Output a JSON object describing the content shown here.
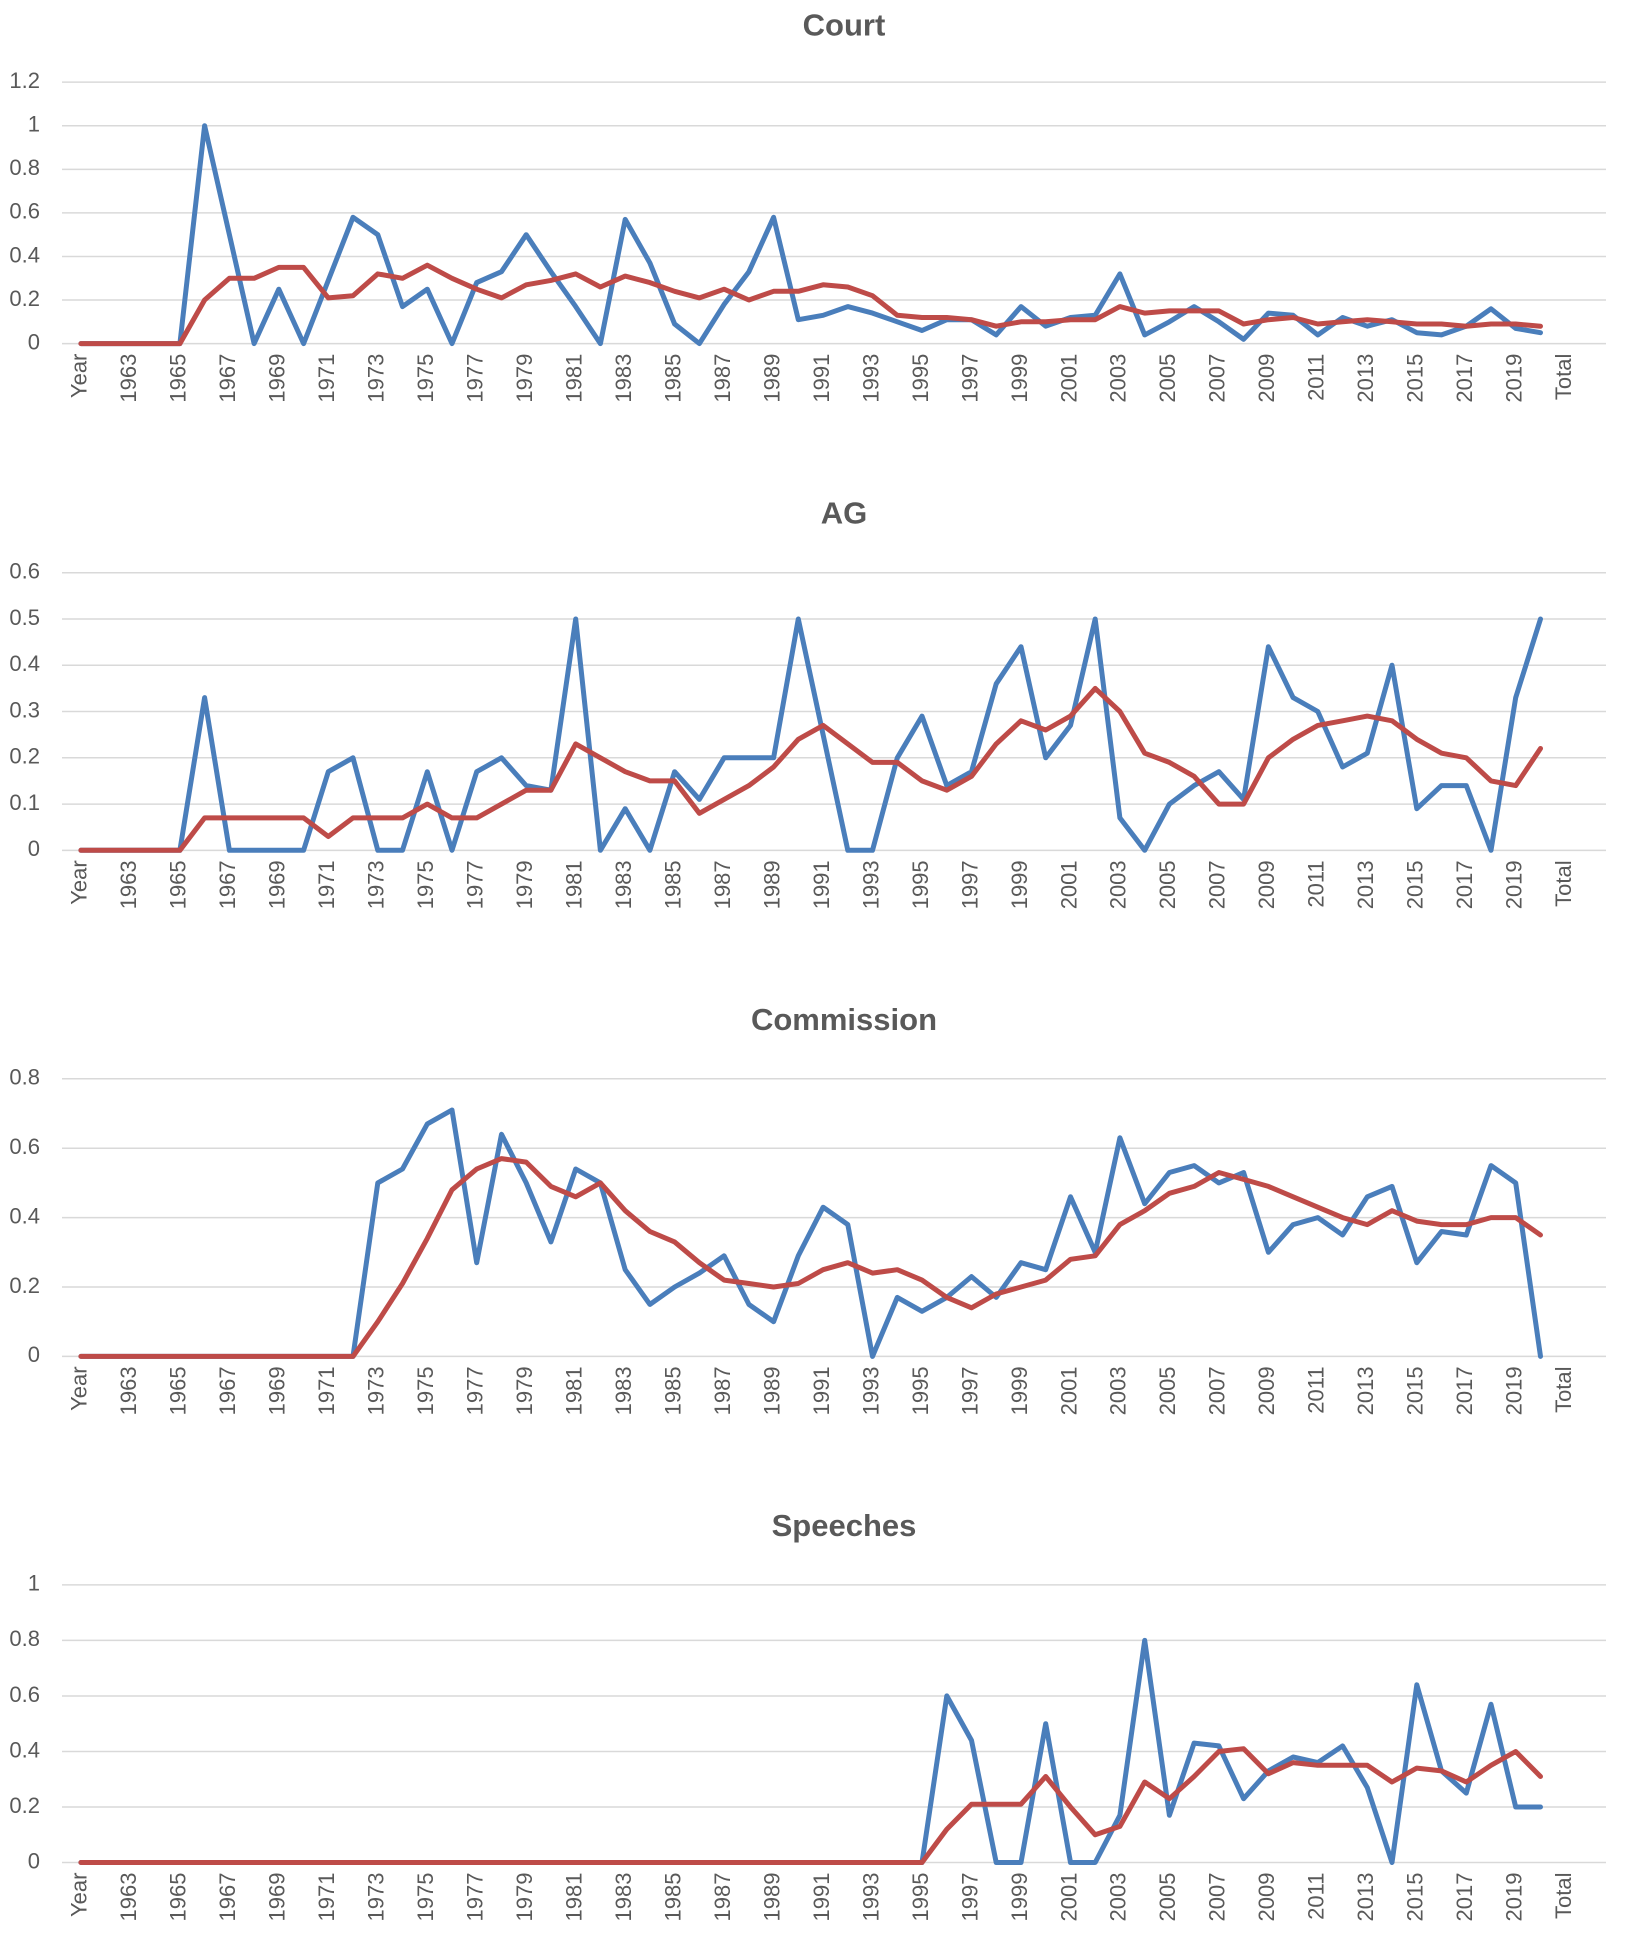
{
  "chart_data": [
    {
      "type": "line",
      "title": "Court",
      "categories": [
        "Year",
        null,
        "1963",
        null,
        "1965",
        null,
        "1967",
        null,
        "1969",
        null,
        "1971",
        null,
        "1973",
        null,
        "1975",
        null,
        "1977",
        null,
        "1979",
        null,
        "1981",
        null,
        "1983",
        null,
        "1985",
        null,
        "1987",
        null,
        "1989",
        null,
        "1991",
        null,
        "1993",
        null,
        "1995",
        null,
        "1997",
        null,
        "1999",
        null,
        "2001",
        null,
        "2003",
        null,
        "2005",
        null,
        "2007",
        null,
        "2009",
        null,
        "2011",
        null,
        "2013",
        null,
        "2015",
        null,
        "2017",
        null,
        "2019",
        null,
        "Total"
      ],
      "ylim": [
        0,
        1.2
      ],
      "yticks": [
        0,
        0.2,
        0.4,
        0.6,
        0.8,
        1,
        1.2
      ],
      "grid": true,
      "series": [
        {
          "color": "#4a7ebb",
          "values": [
            0,
            0,
            0,
            0,
            0,
            1,
            0.5,
            0,
            0.25,
            0,
            0.29,
            0.58,
            0.5,
            0.17,
            0.25,
            0,
            0.28,
            0.33,
            0.5,
            0.33,
            0.17,
            0,
            0.57,
            0.37,
            0.09,
            0,
            0.18,
            0.33,
            0.58,
            0.11,
            0.13,
            0.17,
            0.14,
            0.1,
            0.06,
            0.11,
            0.11,
            0.04,
            0.17,
            0.08,
            0.12,
            0.13,
            0.32,
            0.04,
            0.1,
            0.17,
            0.1,
            0.02,
            0.14,
            0.13,
            0.04,
            0.12,
            0.08,
            0.11,
            0.05,
            0.04,
            0.08,
            0.16,
            0.07,
            0.05,
            null
          ]
        },
        {
          "color": "#be4b48",
          "values": [
            0,
            0,
            0,
            0,
            0,
            0.2,
            0.3,
            0.3,
            0.35,
            0.35,
            0.21,
            0.22,
            0.32,
            0.3,
            0.36,
            0.3,
            0.25,
            0.21,
            0.27,
            0.29,
            0.32,
            0.26,
            0.31,
            0.28,
            0.24,
            0.21,
            0.25,
            0.2,
            0.24,
            0.24,
            0.27,
            0.26,
            0.22,
            0.13,
            0.12,
            0.12,
            0.11,
            0.08,
            0.1,
            0.1,
            0.11,
            0.11,
            0.17,
            0.14,
            0.15,
            0.15,
            0.15,
            0.09,
            0.11,
            0.12,
            0.09,
            0.1,
            0.11,
            0.1,
            0.09,
            0.09,
            0.08,
            0.09,
            0.09,
            0.08,
            null
          ]
        }
      ]
    },
    {
      "type": "line",
      "title": "AG",
      "categories": [
        "Year",
        null,
        "1963",
        null,
        "1965",
        null,
        "1967",
        null,
        "1969",
        null,
        "1971",
        null,
        "1973",
        null,
        "1975",
        null,
        "1977",
        null,
        "1979",
        null,
        "1981",
        null,
        "1983",
        null,
        "1985",
        null,
        "1987",
        null,
        "1989",
        null,
        "1991",
        null,
        "1993",
        null,
        "1995",
        null,
        "1997",
        null,
        "1999",
        null,
        "2001",
        null,
        "2003",
        null,
        "2005",
        null,
        "2007",
        null,
        "2009",
        null,
        "2011",
        null,
        "2013",
        null,
        "2015",
        null,
        "2017",
        null,
        "2019",
        null,
        "Total"
      ],
      "ylim": [
        0,
        0.6
      ],
      "yticks": [
        0,
        0.1,
        0.2,
        0.3,
        0.4,
        0.5,
        0.6
      ],
      "grid": true,
      "series": [
        {
          "color": "#4a7ebb",
          "values": [
            0,
            0,
            0,
            0,
            0,
            0.33,
            0,
            0,
            0,
            0,
            0.17,
            0.2,
            0,
            0,
            0.17,
            0,
            0.17,
            0.2,
            0.14,
            0.13,
            0.5,
            0,
            0.09,
            0,
            0.17,
            0.11,
            0.2,
            0.2,
            0.2,
            0.5,
            0.25,
            0,
            0,
            0.2,
            0.29,
            0.14,
            0.17,
            0.36,
            0.44,
            0.2,
            0.27,
            0.5,
            0.07,
            0,
            0.1,
            0.14,
            0.17,
            0.11,
            0.44,
            0.33,
            0.3,
            0.18,
            0.21,
            0.4,
            0.09,
            0.14,
            0.14,
            0,
            0.33,
            0.5,
            null
          ]
        },
        {
          "color": "#be4b48",
          "values": [
            0,
            0,
            0,
            0,
            0,
            0.07,
            0.07,
            0.07,
            0.07,
            0.07,
            0.03,
            0.07,
            0.07,
            0.07,
            0.1,
            0.07,
            0.07,
            0.1,
            0.13,
            0.13,
            0.23,
            0.2,
            0.17,
            0.15,
            0.15,
            0.08,
            0.11,
            0.14,
            0.18,
            0.24,
            0.27,
            0.23,
            0.19,
            0.19,
            0.15,
            0.13,
            0.16,
            0.23,
            0.28,
            0.26,
            0.29,
            0.35,
            0.3,
            0.21,
            0.19,
            0.16,
            0.1,
            0.1,
            0.2,
            0.24,
            0.27,
            0.28,
            0.29,
            0.28,
            0.24,
            0.21,
            0.2,
            0.15,
            0.14,
            0.22,
            null
          ]
        }
      ]
    },
    {
      "type": "line",
      "title": "Commission",
      "categories": [
        "Year",
        null,
        "1963",
        null,
        "1965",
        null,
        "1967",
        null,
        "1969",
        null,
        "1971",
        null,
        "1973",
        null,
        "1975",
        null,
        "1977",
        null,
        "1979",
        null,
        "1981",
        null,
        "1983",
        null,
        "1985",
        null,
        "1987",
        null,
        "1989",
        null,
        "1991",
        null,
        "1993",
        null,
        "1995",
        null,
        "1997",
        null,
        "1999",
        null,
        "2001",
        null,
        "2003",
        null,
        "2005",
        null,
        "2007",
        null,
        "2009",
        null,
        "2011",
        null,
        "2013",
        null,
        "2015",
        null,
        "2017",
        null,
        "2019",
        null,
        "Total"
      ],
      "ylim": [
        0,
        0.8
      ],
      "yticks": [
        0,
        0.2,
        0.4,
        0.6,
        0.8
      ],
      "grid": true,
      "series": [
        {
          "color": "#4a7ebb",
          "values": [
            0,
            0,
            0,
            0,
            0,
            0,
            0,
            0,
            0,
            0,
            0,
            0,
            0.5,
            0.54,
            0.67,
            0.71,
            0.27,
            0.64,
            0.5,
            0.33,
            0.54,
            0.5,
            0.25,
            0.15,
            0.2,
            0.24,
            0.29,
            0.15,
            0.1,
            0.29,
            0.43,
            0.38,
            0,
            0.17,
            0.13,
            0.17,
            0.23,
            0.17,
            0.27,
            0.25,
            0.46,
            0.3,
            0.63,
            0.44,
            0.53,
            0.55,
            0.5,
            0.53,
            0.3,
            0.38,
            0.4,
            0.35,
            0.46,
            0.49,
            0.27,
            0.36,
            0.35,
            0.55,
            0.5,
            0,
            null
          ]
        },
        {
          "color": "#be4b48",
          "values": [
            0,
            0,
            0,
            0,
            0,
            0,
            0,
            0,
            0,
            0,
            0,
            0,
            0.1,
            0.21,
            0.34,
            0.48,
            0.54,
            0.57,
            0.56,
            0.49,
            0.46,
            0.5,
            0.42,
            0.36,
            0.33,
            0.27,
            0.22,
            0.21,
            0.2,
            0.21,
            0.25,
            0.27,
            0.24,
            0.25,
            0.22,
            0.17,
            0.14,
            0.18,
            0.2,
            0.22,
            0.28,
            0.29,
            0.38,
            0.42,
            0.47,
            0.49,
            0.53,
            0.51,
            0.49,
            0.46,
            0.43,
            0.4,
            0.38,
            0.42,
            0.39,
            0.38,
            0.38,
            0.4,
            0.4,
            0.35,
            null
          ]
        }
      ]
    },
    {
      "type": "line",
      "title": "Speeches",
      "categories": [
        "Year",
        null,
        "1963",
        null,
        "1965",
        null,
        "1967",
        null,
        "1969",
        null,
        "1971",
        null,
        "1973",
        null,
        "1975",
        null,
        "1977",
        null,
        "1979",
        null,
        "1981",
        null,
        "1983",
        null,
        "1985",
        null,
        "1987",
        null,
        "1989",
        null,
        "1991",
        null,
        "1993",
        null,
        "1995",
        null,
        "1997",
        null,
        "1999",
        null,
        "2001",
        null,
        "2003",
        null,
        "2005",
        null,
        "2007",
        null,
        "2009",
        null,
        "2011",
        null,
        "2013",
        null,
        "2015",
        null,
        "2017",
        null,
        "2019",
        null,
        "Total"
      ],
      "ylim": [
        0,
        1
      ],
      "yticks": [
        0,
        0.2,
        0.4,
        0.6,
        0.8,
        1
      ],
      "grid": true,
      "series": [
        {
          "color": "#4a7ebb",
          "values": [
            0,
            0,
            0,
            0,
            0,
            0,
            0,
            0,
            0,
            0,
            0,
            0,
            0,
            0,
            0,
            0,
            0,
            0,
            0,
            0,
            0,
            0,
            0,
            0,
            0,
            0,
            0,
            0,
            0,
            0,
            0,
            0,
            0,
            0,
            0,
            0.6,
            0.44,
            0,
            0,
            0.5,
            0,
            0,
            0.17,
            0.8,
            0.17,
            0.43,
            0.42,
            0.23,
            0.33,
            0.38,
            0.36,
            0.42,
            0.27,
            0,
            0.64,
            0.33,
            0.25,
            0.57,
            0.2,
            0.2,
            null
          ]
        },
        {
          "color": "#be4b48",
          "values": [
            0,
            0,
            0,
            0,
            0,
            0,
            0,
            0,
            0,
            0,
            0,
            0,
            0,
            0,
            0,
            0,
            0,
            0,
            0,
            0,
            0,
            0,
            0,
            0,
            0,
            0,
            0,
            0,
            0,
            0,
            0,
            0,
            0,
            0,
            0,
            0.12,
            0.21,
            0.21,
            0.21,
            0.31,
            0.2,
            0.1,
            0.13,
            0.29,
            0.23,
            0.31,
            0.4,
            0.41,
            0.32,
            0.36,
            0.35,
            0.35,
            0.35,
            0.29,
            0.34,
            0.33,
            0.29,
            0.35,
            0.4,
            0.31,
            null
          ]
        }
      ]
    }
  ]
}
